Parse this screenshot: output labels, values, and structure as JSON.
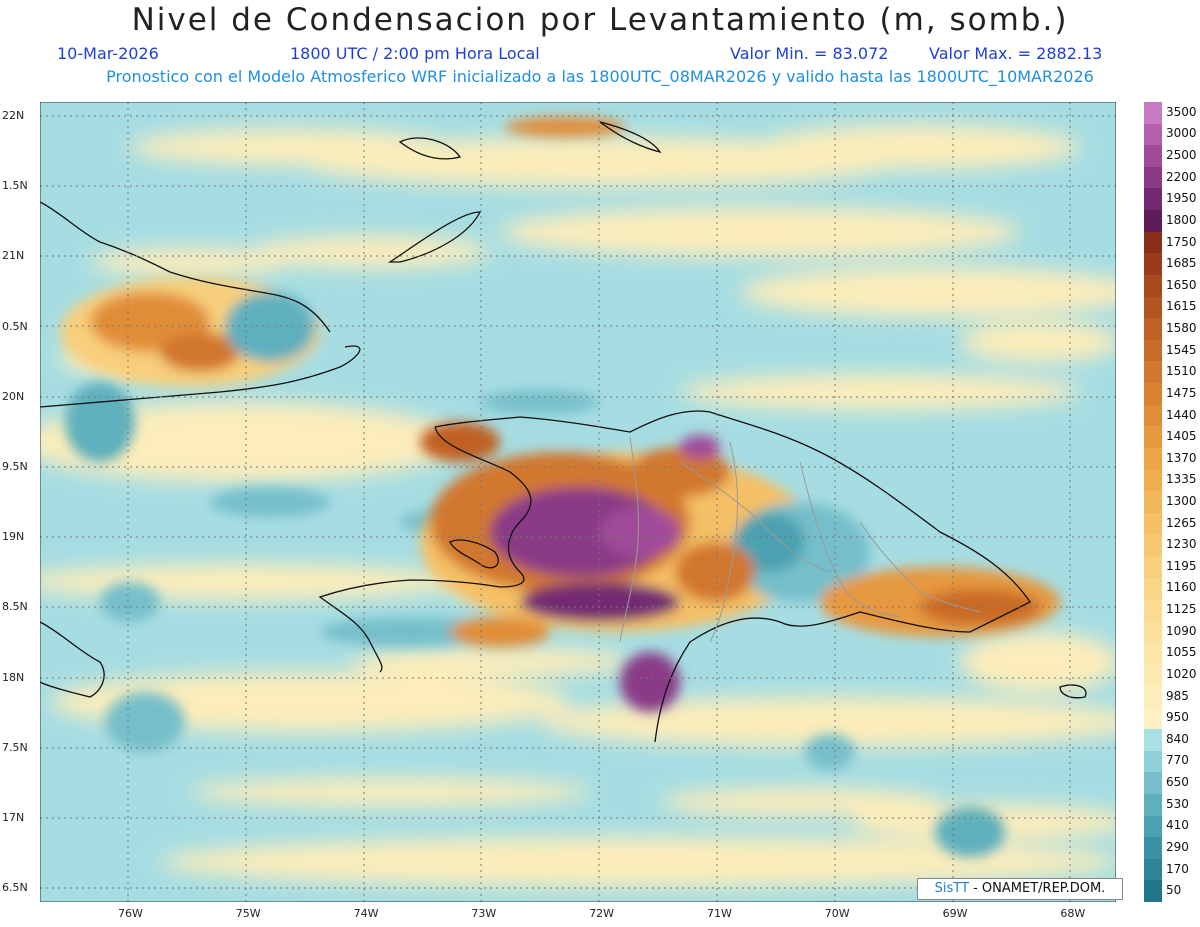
{
  "header": {
    "title": "Nivel de Condensacion por Levantamiento (m, somb.)",
    "date": "10-Mar-2026",
    "time": "1800 UTC / 2:00 pm Hora Local",
    "valmin": "Valor Min. = 83.072",
    "valmax": "Valor Max. = 2882.13",
    "init_line": "Pronostico con el Modelo Atmosferico WRF inicializado a las 1800UTC_08MAR2026 y valido hasta las  1800UTC_10MAR2026"
  },
  "axes": {
    "lat_labels": [
      "22N",
      "1.5N",
      "21N",
      "0.5N",
      "20N",
      "9.5N",
      "19N",
      "8.5N",
      "18N",
      "7.5N",
      "17N",
      "6.5N"
    ],
    "lon_labels": [
      "76W",
      "75W",
      "74W",
      "73W",
      "72W",
      "71W",
      "70W",
      "69W",
      "68W"
    ]
  },
  "colorbar": {
    "labels": [
      "3500",
      "3000",
      "2500",
      "2200",
      "1950",
      "1800",
      "1750",
      "1685",
      "1650",
      "1615",
      "1580",
      "1545",
      "1510",
      "1475",
      "1440",
      "1405",
      "1370",
      "1335",
      "1300",
      "1265",
      "1230",
      "1195",
      "1160",
      "1125",
      "1090",
      "1055",
      "1020",
      "985",
      "950",
      "840",
      "770",
      "650",
      "530",
      "410",
      "290",
      "170",
      "50"
    ],
    "colors": [
      "#c67ac0",
      "#b65fae",
      "#a04c9a",
      "#8a3a86",
      "#732a72",
      "#5e1d5a",
      "#8a2f1a",
      "#9a3c1c",
      "#a8491e",
      "#b45421",
      "#c06024",
      "#c96b28",
      "#d2772d",
      "#da8232",
      "#e08d38",
      "#e6993f",
      "#ebA447",
      "#efae50",
      "#f2b75a",
      "#f5c065",
      "#f7c870",
      "#f8cf7b",
      "#f9d586",
      "#fadb91",
      "#fbe09c",
      "#fbe5a7",
      "#fceab1",
      "#fcedba",
      "#fdf0c3",
      "#a8e0e6",
      "#8fd0d8",
      "#76bfca",
      "#5fb0bd",
      "#4ba1b0",
      "#3a92a3",
      "#2c8496",
      "#1f7689"
    ]
  },
  "credit": {
    "brand": "SisTT",
    "text": "- ONAMET/REP.DOM."
  }
}
